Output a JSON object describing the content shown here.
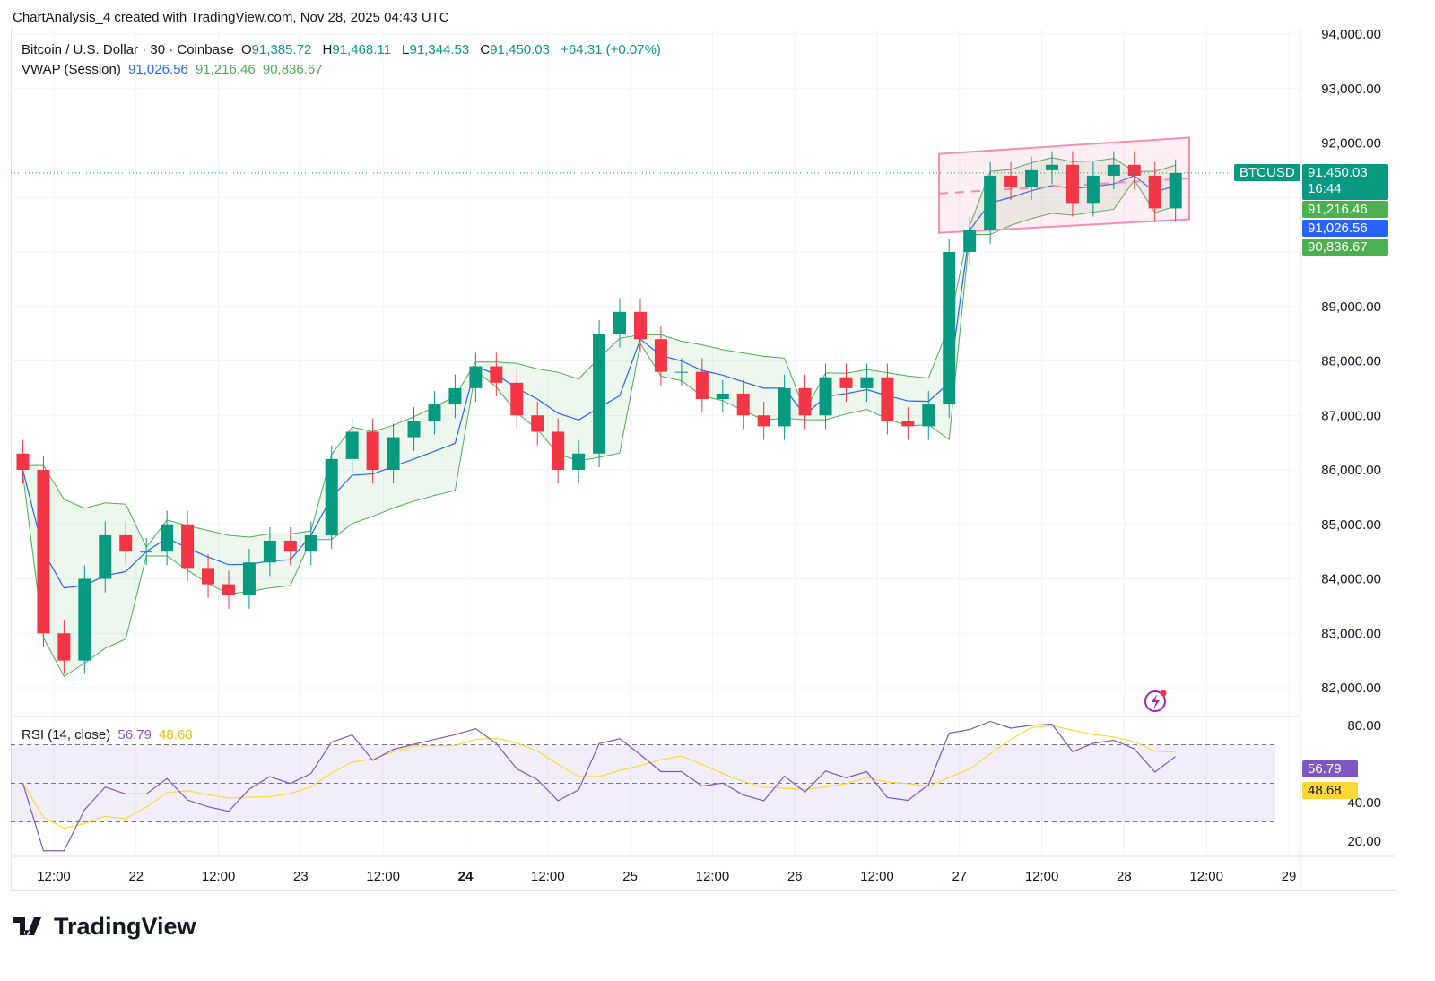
{
  "title": "ChartAnalysis_4 created with TradingView.com, Nov 28, 2025 04:43 UTC",
  "legend": {
    "symbol": "Bitcoin / U.S. Dollar · 30 · Coinbase",
    "o_label": "O",
    "o": "91,385.72",
    "h_label": "H",
    "h": "91,468.11",
    "l_label": "L",
    "l": "91,344.53",
    "c_label": "C",
    "c": "91,450.03",
    "change": "+64.31 (+0.07%)",
    "vwap_label": "VWAP (Session)",
    "vwap": "91,026.56",
    "upper": "91,216.46",
    "lower": "90,836.67",
    "rsi_label": "RSI (14, close)",
    "rsi": "56.79",
    "rsi_ma": "48.68"
  },
  "tags": {
    "symbol": "BTCUSD",
    "price": "91,450.03",
    "countdown": "16:44",
    "upper": "91,216.46",
    "vwap": "91,026.56",
    "lower": "90,836.67",
    "rsi": "56.79",
    "rsi_ma": "48.68"
  },
  "colors": {
    "up": "#089981",
    "down": "#f23645",
    "vwap": "#2962ff",
    "band": "#4caf50",
    "rsi": "#7e57c2",
    "rsi_ma": "#fdd835",
    "channel": "#f48fb1"
  },
  "logo": "TradingView",
  "chart_data": {
    "type": "candlestick",
    "interval_hours": 3,
    "start": "Nov 21 06:00",
    "closes": [
      86000,
      83000,
      82500,
      84000,
      84800,
      84500,
      84500,
      85000,
      84200,
      83900,
      83700,
      84300,
      84700,
      84500,
      84800,
      86200,
      86700,
      86000,
      86600,
      86900,
      87200,
      87500,
      87900,
      87600,
      87000,
      86700,
      86000,
      86300,
      88500,
      88900,
      88400,
      87800,
      87800,
      87300,
      87400,
      87000,
      86800,
      87500,
      87000,
      87700,
      87500,
      87700,
      86900,
      86800,
      87200,
      90000,
      90400,
      91400,
      91200,
      91500,
      91600,
      90900,
      91400,
      91600,
      91400,
      90800,
      91450
    ],
    "y_ticks": [
      82000,
      83000,
      84000,
      85000,
      86000,
      87000,
      88000,
      89000,
      92000,
      93000,
      94000
    ],
    "y_tick_labels": [
      "82,000.00",
      "83,000.00",
      "84,000.00",
      "85,000.00",
      "86,000.00",
      "87,000.00",
      "88,000.00",
      "89,000.00",
      "92,000.00",
      "93,000.00",
      "94,000.00"
    ],
    "ylim": [
      81500,
      94300
    ],
    "x_tick_labels": [
      "12:00",
      "22",
      "12:00",
      "23",
      "12:00",
      "24",
      "12:00",
      "25",
      "12:00",
      "26",
      "12:00",
      "27",
      "12:00",
      "28",
      "12:00",
      "29"
    ],
    "rsi_ticks": [
      "20.00",
      "40.00",
      "80.00"
    ],
    "rsi_levels": [
      70,
      30
    ],
    "channel": {
      "upper": [
        91800,
        92100
      ],
      "lower": [
        90350,
        90600
      ]
    }
  }
}
